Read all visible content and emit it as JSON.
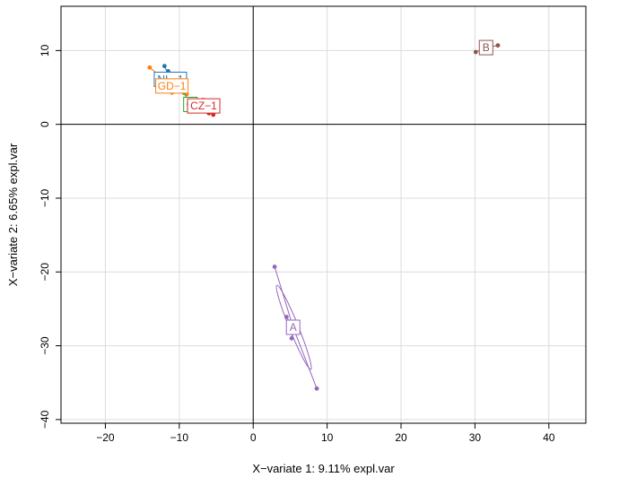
{
  "chart_data": {
    "type": "scatter",
    "title": "",
    "xlabel": "X−variate 1: 9.11% expl.var",
    "ylabel": "X−variate 2: 6.65% expl.var",
    "xlim": [
      -26,
      45
    ],
    "ylim": [
      -40.5,
      16
    ],
    "xticks": [
      -20,
      -10,
      0,
      10,
      20,
      30,
      40
    ],
    "yticks": [
      -40,
      -30,
      -20,
      -10,
      0,
      10
    ],
    "xtick_labels": [
      "−20",
      "−10",
      "0",
      "10",
      "20",
      "30",
      "40"
    ],
    "ytick_labels": [
      "−40",
      "−30",
      "−20",
      "−10",
      "0",
      "10"
    ],
    "grid": true,
    "reference_lines": {
      "x": 0,
      "y": 0
    },
    "series": [
      {
        "name": "NL−1",
        "color": "#1f77b4",
        "centroid": [
          -11.2,
          6.1
        ],
        "points": [
          [
            -12.0,
            7.9
          ],
          [
            -11.5,
            7.2
          ]
        ]
      },
      {
        "name": "GD−1",
        "color": "#ff7f0e",
        "centroid": [
          -11.0,
          5.2
        ],
        "points": [
          [
            -14.0,
            7.7
          ],
          [
            -11.0,
            4.3
          ],
          [
            -9.0,
            4.1
          ]
        ]
      },
      {
        "name": "G",
        "color": "#2ca02c",
        "centroid": [
          -8.5,
          2.7
        ],
        "points": [
          [
            -9.4,
            4.3
          ],
          [
            -8.3,
            3.1
          ]
        ]
      },
      {
        "name": "CZ−1",
        "color": "#d62728",
        "centroid": [
          -6.7,
          2.5
        ],
        "points": [
          [
            -6.8,
            3.3
          ],
          [
            -6.0,
            1.5
          ],
          [
            -5.4,
            1.3
          ]
        ]
      },
      {
        "name": "B",
        "color": "#8c564b",
        "centroid": [
          31.5,
          10.4
        ],
        "points": [
          [
            30.1,
            9.8
          ],
          [
            33.1,
            10.7
          ]
        ]
      },
      {
        "name": "A",
        "color": "#9467bd",
        "centroid": [
          5.4,
          -27.5
        ],
        "points": [
          [
            2.9,
            -19.3
          ],
          [
            4.5,
            -26.1
          ],
          [
            5.2,
            -29.0
          ],
          [
            8.6,
            -35.8
          ]
        ],
        "ellipse": [
          [
            3.2,
            -21.8
          ],
          [
            7.8,
            -33.2
          ]
        ]
      }
    ]
  }
}
